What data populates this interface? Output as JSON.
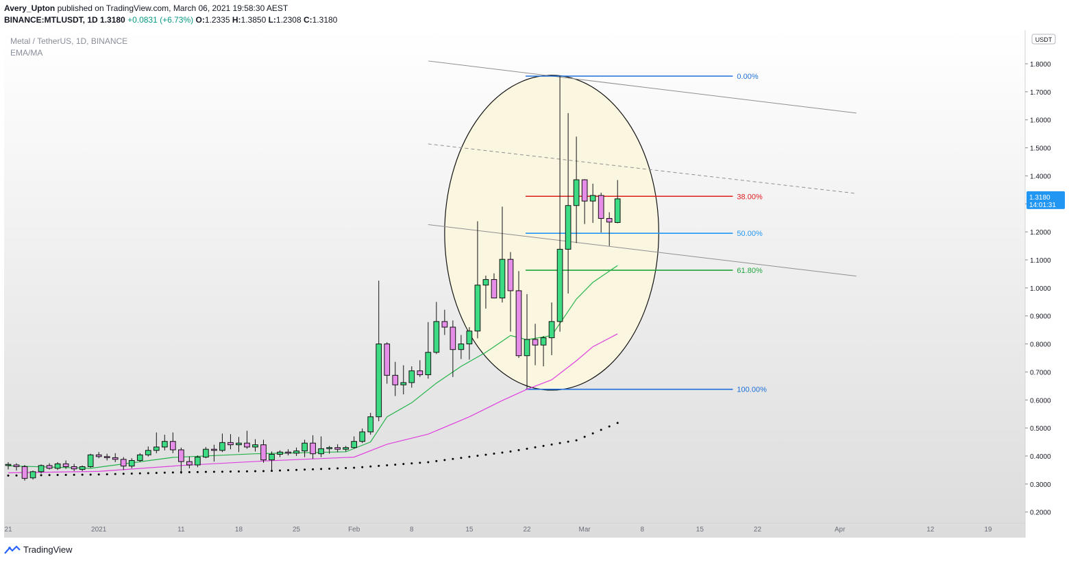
{
  "header": {
    "publisher": "Avery_Upton",
    "published_text": "published on TradingView.com, March 06, 2021 19:58:30 AEST",
    "symbol_line": "BINANCE:MTLUSDT, 1D",
    "last": "1.3180",
    "change": "+0.0831 (+6.73%)",
    "o_label": "O:",
    "o": "1.2335",
    "h_label": "H:",
    "h": "1.3850",
    "l_label": "L:",
    "l": "1.2308",
    "c_label": "C:",
    "c": "1.3180"
  },
  "legend": {
    "title": "Metal / TetherUS, 1D, BINANCE",
    "indicator": "EMA/MA"
  },
  "price_axis": {
    "currency_tag": "USDT",
    "last_price": "1.3180",
    "countdown": "14:01:31",
    "ticks": [
      "1.8000",
      "1.7000",
      "1.6000",
      "1.5000",
      "1.4000",
      "1.3000",
      "1.2000",
      "1.1000",
      "1.0000",
      "0.9000",
      "0.8000",
      "0.7000",
      "0.6000",
      "0.5000",
      "0.4000",
      "0.3000",
      "0.2000"
    ]
  },
  "time_axis": {
    "labels": [
      {
        "d": "2020-12-21",
        "t": "21"
      },
      {
        "d": "2021-01-01",
        "t": "2021"
      },
      {
        "d": "2021-01-11",
        "t": "11"
      },
      {
        "d": "2021-01-18",
        "t": "18"
      },
      {
        "d": "2021-01-25",
        "t": "25"
      },
      {
        "d": "2021-02-01",
        "t": "Feb"
      },
      {
        "d": "2021-02-08",
        "t": "8"
      },
      {
        "d": "2021-02-15",
        "t": "15"
      },
      {
        "d": "2021-02-22",
        "t": "22"
      },
      {
        "d": "2021-03-01",
        "t": "Mar"
      },
      {
        "d": "2021-03-08",
        "t": "8"
      },
      {
        "d": "2021-03-15",
        "t": "15"
      },
      {
        "d": "2021-03-22",
        "t": "22"
      },
      {
        "d": "2021-04-01",
        "t": "Apr"
      },
      {
        "d": "2021-04-12",
        "t": "12"
      },
      {
        "d": "2021-04-19",
        "t": "19"
      }
    ]
  },
  "fib_levels": [
    {
      "label": "0.00%",
      "price": 1.756,
      "color": "#1e6fd9"
    },
    {
      "label": "38.00%",
      "price": 1.327,
      "color": "#e01b1b"
    },
    {
      "label": "50.00%",
      "price": 1.195,
      "color": "#2196f3"
    },
    {
      "label": "61.80%",
      "price": 1.063,
      "color": "#1fa33a"
    },
    {
      "label": "100.00%",
      "price": 0.638,
      "color": "#1e6fd9"
    }
  ],
  "colors": {
    "up_candle": "#3ddc84",
    "down_candle": "#e58de8",
    "ema_fast": "#22b34a",
    "ema_slow": "#e040e0",
    "ma_dots": "#000000",
    "ellipse_fill": "#fbf6e0"
  },
  "footer": {
    "brand": "TradingView"
  },
  "chart_data": {
    "type": "candlestick",
    "title": "Metal / TetherUS, 1D, BINANCE",
    "xlabel": "",
    "ylabel": "",
    "ylim": [
      0.16,
      1.92
    ],
    "x_range": [
      "2020-12-21",
      "2021-04-24"
    ],
    "grid": false,
    "scale": "linear",
    "candles": [
      {
        "d": "2020-12-21",
        "o": 0.366,
        "h": 0.378,
        "l": 0.352,
        "c": 0.37
      },
      {
        "d": "2020-12-22",
        "o": 0.368,
        "h": 0.374,
        "l": 0.348,
        "c": 0.362
      },
      {
        "d": "2020-12-23",
        "o": 0.362,
        "h": 0.368,
        "l": 0.312,
        "c": 0.32
      },
      {
        "d": "2020-12-24",
        "o": 0.322,
        "h": 0.348,
        "l": 0.316,
        "c": 0.344
      },
      {
        "d": "2020-12-25",
        "o": 0.344,
        "h": 0.37,
        "l": 0.338,
        "c": 0.366
      },
      {
        "d": "2020-12-26",
        "o": 0.366,
        "h": 0.374,
        "l": 0.352,
        "c": 0.356
      },
      {
        "d": "2020-12-27",
        "o": 0.356,
        "h": 0.378,
        "l": 0.35,
        "c": 0.372
      },
      {
        "d": "2020-12-28",
        "o": 0.372,
        "h": 0.384,
        "l": 0.354,
        "c": 0.362
      },
      {
        "d": "2020-12-29",
        "o": 0.362,
        "h": 0.372,
        "l": 0.346,
        "c": 0.354
      },
      {
        "d": "2020-12-30",
        "o": 0.352,
        "h": 0.366,
        "l": 0.346,
        "c": 0.362
      },
      {
        "d": "2020-12-31",
        "o": 0.362,
        "h": 0.408,
        "l": 0.358,
        "c": 0.404
      },
      {
        "d": "2021-01-01",
        "o": 0.404,
        "h": 0.414,
        "l": 0.392,
        "c": 0.398
      },
      {
        "d": "2021-01-02",
        "o": 0.398,
        "h": 0.408,
        "l": 0.384,
        "c": 0.394
      },
      {
        "d": "2021-01-03",
        "o": 0.394,
        "h": 0.41,
        "l": 0.378,
        "c": 0.388
      },
      {
        "d": "2021-01-04",
        "o": 0.388,
        "h": 0.396,
        "l": 0.35,
        "c": 0.364
      },
      {
        "d": "2021-01-05",
        "o": 0.364,
        "h": 0.392,
        "l": 0.356,
        "c": 0.384
      },
      {
        "d": "2021-01-06",
        "o": 0.384,
        "h": 0.41,
        "l": 0.378,
        "c": 0.404
      },
      {
        "d": "2021-01-07",
        "o": 0.404,
        "h": 0.434,
        "l": 0.398,
        "c": 0.42
      },
      {
        "d": "2021-01-08",
        "o": 0.42,
        "h": 0.484,
        "l": 0.41,
        "c": 0.432
      },
      {
        "d": "2021-01-09",
        "o": 0.432,
        "h": 0.476,
        "l": 0.42,
        "c": 0.452
      },
      {
        "d": "2021-01-10",
        "o": 0.452,
        "h": 0.484,
        "l": 0.41,
        "c": 0.422
      },
      {
        "d": "2021-01-11",
        "o": 0.422,
        "h": 0.43,
        "l": 0.336,
        "c": 0.38
      },
      {
        "d": "2021-01-12",
        "o": 0.38,
        "h": 0.398,
        "l": 0.356,
        "c": 0.368
      },
      {
        "d": "2021-01-13",
        "o": 0.368,
        "h": 0.402,
        "l": 0.36,
        "c": 0.396
      },
      {
        "d": "2021-01-14",
        "o": 0.396,
        "h": 0.432,
        "l": 0.392,
        "c": 0.424
      },
      {
        "d": "2021-01-15",
        "o": 0.424,
        "h": 0.44,
        "l": 0.38,
        "c": 0.42
      },
      {
        "d": "2021-01-16",
        "o": 0.42,
        "h": 0.48,
        "l": 0.414,
        "c": 0.448
      },
      {
        "d": "2021-01-17",
        "o": 0.448,
        "h": 0.478,
        "l": 0.424,
        "c": 0.44
      },
      {
        "d": "2021-01-18",
        "o": 0.44,
        "h": 0.468,
        "l": 0.414,
        "c": 0.446
      },
      {
        "d": "2021-01-19",
        "o": 0.446,
        "h": 0.49,
        "l": 0.426,
        "c": 0.432
      },
      {
        "d": "2021-01-20",
        "o": 0.432,
        "h": 0.46,
        "l": 0.416,
        "c": 0.44
      },
      {
        "d": "2021-01-21",
        "o": 0.44,
        "h": 0.458,
        "l": 0.376,
        "c": 0.386
      },
      {
        "d": "2021-01-22",
        "o": 0.386,
        "h": 0.416,
        "l": 0.346,
        "c": 0.406
      },
      {
        "d": "2021-01-23",
        "o": 0.406,
        "h": 0.42,
        "l": 0.396,
        "c": 0.414
      },
      {
        "d": "2021-01-24",
        "o": 0.414,
        "h": 0.424,
        "l": 0.402,
        "c": 0.41
      },
      {
        "d": "2021-01-25",
        "o": 0.41,
        "h": 0.43,
        "l": 0.4,
        "c": 0.418
      },
      {
        "d": "2021-01-26",
        "o": 0.418,
        "h": 0.458,
        "l": 0.396,
        "c": 0.446
      },
      {
        "d": "2021-01-27",
        "o": 0.446,
        "h": 0.474,
        "l": 0.39,
        "c": 0.408
      },
      {
        "d": "2021-01-28",
        "o": 0.408,
        "h": 0.47,
        "l": 0.396,
        "c": 0.426
      },
      {
        "d": "2021-01-29",
        "o": 0.426,
        "h": 0.436,
        "l": 0.408,
        "c": 0.43
      },
      {
        "d": "2021-01-30",
        "o": 0.43,
        "h": 0.442,
        "l": 0.414,
        "c": 0.424
      },
      {
        "d": "2021-01-31",
        "o": 0.424,
        "h": 0.436,
        "l": 0.416,
        "c": 0.43
      },
      {
        "d": "2021-02-01",
        "o": 0.43,
        "h": 0.47,
        "l": 0.426,
        "c": 0.452
      },
      {
        "d": "2021-02-02",
        "o": 0.452,
        "h": 0.498,
        "l": 0.446,
        "c": 0.486
      },
      {
        "d": "2021-02-03",
        "o": 0.486,
        "h": 0.554,
        "l": 0.476,
        "c": 0.54
      },
      {
        "d": "2021-02-04",
        "o": 0.54,
        "h": 1.026,
        "l": 0.524,
        "c": 0.8
      },
      {
        "d": "2021-02-05",
        "o": 0.8,
        "h": 0.806,
        "l": 0.658,
        "c": 0.688
      },
      {
        "d": "2021-02-06",
        "o": 0.688,
        "h": 0.736,
        "l": 0.614,
        "c": 0.654
      },
      {
        "d": "2021-02-07",
        "o": 0.654,
        "h": 0.724,
        "l": 0.62,
        "c": 0.662
      },
      {
        "d": "2021-02-08",
        "o": 0.662,
        "h": 0.72,
        "l": 0.644,
        "c": 0.704
      },
      {
        "d": "2021-02-09",
        "o": 0.704,
        "h": 0.742,
        "l": 0.682,
        "c": 0.69
      },
      {
        "d": "2021-02-10",
        "o": 0.69,
        "h": 0.878,
        "l": 0.676,
        "c": 0.77
      },
      {
        "d": "2021-02-11",
        "o": 0.77,
        "h": 0.95,
        "l": 0.764,
        "c": 0.88
      },
      {
        "d": "2021-02-12",
        "o": 0.88,
        "h": 0.922,
        "l": 0.832,
        "c": 0.86
      },
      {
        "d": "2021-02-13",
        "o": 0.86,
        "h": 0.884,
        "l": 0.682,
        "c": 0.78
      },
      {
        "d": "2021-02-14",
        "o": 0.78,
        "h": 0.832,
        "l": 0.746,
        "c": 0.8
      },
      {
        "d": "2021-02-15",
        "o": 0.8,
        "h": 0.86,
        "l": 0.744,
        "c": 0.846
      },
      {
        "d": "2021-02-16",
        "o": 0.846,
        "h": 1.238,
        "l": 0.82,
        "c": 1.01
      },
      {
        "d": "2021-02-17",
        "o": 1.01,
        "h": 1.044,
        "l": 0.926,
        "c": 1.03
      },
      {
        "d": "2021-02-18",
        "o": 1.03,
        "h": 1.052,
        "l": 0.972,
        "c": 0.964
      },
      {
        "d": "2021-02-19",
        "o": 0.964,
        "h": 1.29,
        "l": 0.948,
        "c": 1.102
      },
      {
        "d": "2021-02-20",
        "o": 1.102,
        "h": 1.128,
        "l": 0.844,
        "c": 0.99
      },
      {
        "d": "2021-02-21",
        "o": 0.99,
        "h": 1.06,
        "l": 0.75,
        "c": 0.758
      },
      {
        "d": "2021-02-22",
        "o": 0.758,
        "h": 0.978,
        "l": 0.64,
        "c": 0.816
      },
      {
        "d": "2021-02-23",
        "o": 0.816,
        "h": 0.872,
        "l": 0.724,
        "c": 0.796
      },
      {
        "d": "2021-02-24",
        "o": 0.796,
        "h": 0.828,
        "l": 0.72,
        "c": 0.822
      },
      {
        "d": "2021-02-25",
        "o": 0.822,
        "h": 0.948,
        "l": 0.76,
        "c": 0.88
      },
      {
        "d": "2021-02-26",
        "o": 0.88,
        "h": 1.756,
        "l": 0.844,
        "c": 1.138
      },
      {
        "d": "2021-02-27",
        "o": 1.138,
        "h": 1.624,
        "l": 0.98,
        "c": 1.294
      },
      {
        "d": "2021-02-28",
        "o": 1.294,
        "h": 1.54,
        "l": 1.16,
        "c": 1.386
      },
      {
        "d": "2021-03-01",
        "o": 1.386,
        "h": 1.388,
        "l": 1.228,
        "c": 1.31
      },
      {
        "d": "2021-03-02",
        "o": 1.31,
        "h": 1.372,
        "l": 1.232,
        "c": 1.33
      },
      {
        "d": "2021-03-03",
        "o": 1.33,
        "h": 1.34,
        "l": 1.198,
        "c": 1.248
      },
      {
        "d": "2021-03-04",
        "o": 1.248,
        "h": 1.27,
        "l": 1.15,
        "c": 1.235
      },
      {
        "d": "2021-03-05",
        "o": 1.2335,
        "h": 1.385,
        "l": 1.2308,
        "c": 1.318
      }
    ],
    "ema_fast": {
      "name": "",
      "points": [
        [
          "2020-12-21",
          0.365
        ],
        [
          "2020-12-31",
          0.356
        ],
        [
          "2021-01-10",
          0.395
        ],
        [
          "2021-01-20",
          0.408
        ],
        [
          "2021-01-31",
          0.415
        ],
        [
          "2021-02-03",
          0.45
        ],
        [
          "2021-02-05",
          0.54
        ],
        [
          "2021-02-08",
          0.59
        ],
        [
          "2021-02-11",
          0.66
        ],
        [
          "2021-02-14",
          0.72
        ],
        [
          "2021-02-17",
          0.77
        ],
        [
          "2021-02-20",
          0.83
        ],
        [
          "2021-02-22",
          0.815
        ],
        [
          "2021-02-25",
          0.83
        ],
        [
          "2021-02-28",
          0.96
        ],
        [
          "2021-03-02",
          1.02
        ],
        [
          "2021-03-05",
          1.08
        ]
      ]
    },
    "ema_slow": {
      "name": "",
      "points": [
        [
          "2020-12-21",
          0.34
        ],
        [
          "2021-01-01",
          0.345
        ],
        [
          "2021-01-11",
          0.366
        ],
        [
          "2021-01-21",
          0.382
        ],
        [
          "2021-02-01",
          0.396
        ],
        [
          "2021-02-05",
          0.442
        ],
        [
          "2021-02-10",
          0.478
        ],
        [
          "2021-02-15",
          0.54
        ],
        [
          "2021-02-19",
          0.598
        ],
        [
          "2021-02-22",
          0.638
        ],
        [
          "2021-02-25",
          0.672
        ],
        [
          "2021-02-28",
          0.74
        ],
        [
          "2021-03-02",
          0.79
        ],
        [
          "2021-03-05",
          0.836
        ]
      ]
    },
    "ma_dots": {
      "name": "",
      "points": [
        [
          "2020-12-21",
          0.33
        ],
        [
          "2021-01-01",
          0.334
        ],
        [
          "2021-01-11",
          0.342
        ],
        [
          "2021-01-21",
          0.346
        ],
        [
          "2021-02-01",
          0.358
        ],
        [
          "2021-02-10",
          0.378
        ],
        [
          "2021-02-20",
          0.416
        ],
        [
          "2021-02-28",
          0.456
        ],
        [
          "2021-03-05",
          0.518
        ]
      ]
    },
    "trendlines": [
      {
        "from": [
          "2021-02-10",
          1.81
        ],
        "to": [
          "2021-04-03",
          1.624
        ],
        "style": "solid"
      },
      {
        "from": [
          "2021-02-10",
          1.514
        ],
        "to": [
          "2021-04-03",
          1.337
        ],
        "style": "dashed"
      },
      {
        "from": [
          "2021-02-10",
          1.226
        ],
        "to": [
          "2021-04-03",
          1.042
        ],
        "style": "solid"
      }
    ],
    "ellipse": {
      "center": [
        "2021-02-25",
        1.197
      ],
      "rx_days": 13.0,
      "ry_price": 0.562
    }
  }
}
